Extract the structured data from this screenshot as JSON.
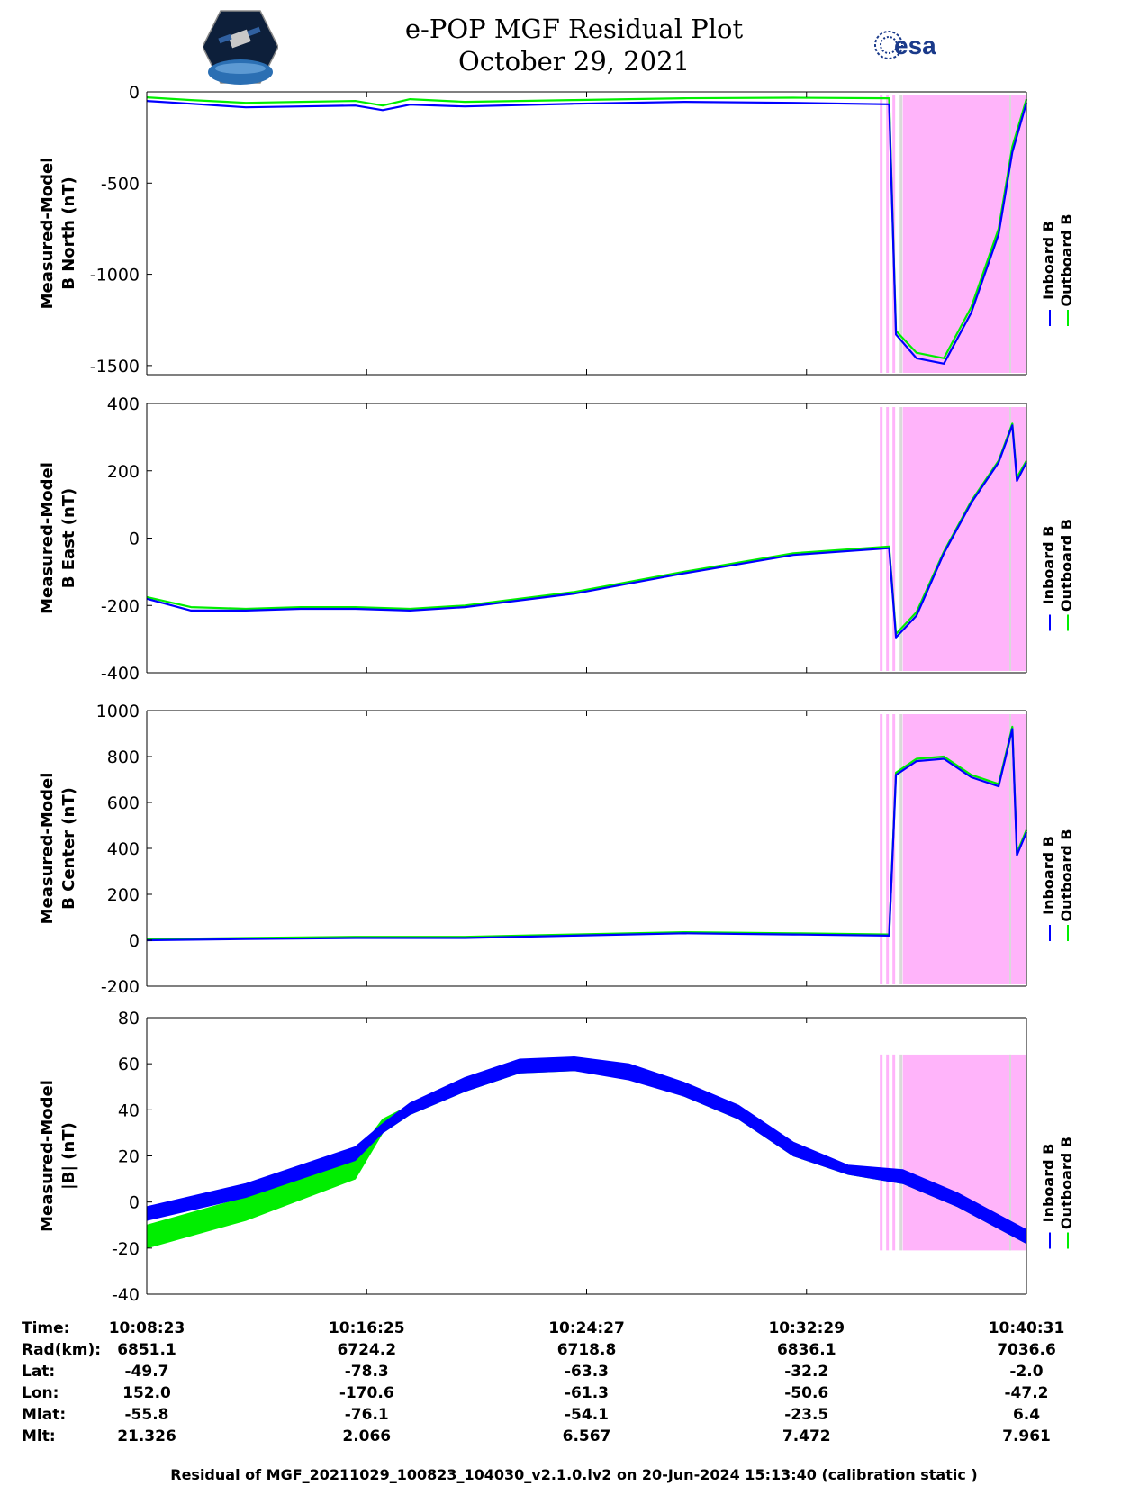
{
  "header": {
    "title_line1": "e-POP MGF Residual Plot",
    "title_line2": "October 29, 2021",
    "logo_left": "cassiope-mission-logo",
    "logo_right_text": "esa"
  },
  "colors": {
    "inboard": "#0000ff",
    "outboard": "#00ee00",
    "flag_region": "#ffb4fa",
    "flag_stripe": "#d9d9d9"
  },
  "chart_data": [
    {
      "type": "line",
      "ylabel": "Measured-Model\nB North (nT)",
      "ylim": [
        -1550,
        0
      ],
      "yticks": [
        0,
        -500,
        -1000,
        -1500
      ],
      "xlim": [
        "10:08:23",
        "10:40:31"
      ],
      "legend": [
        "Inboard B",
        "Outboard B"
      ],
      "legend_placement": "right",
      "flag_region": [
        "10:36:00",
        "10:40:31"
      ],
      "series": [
        {
          "name": "Outboard B",
          "x": [
            "10:08:23",
            "10:10:00",
            "10:12:00",
            "10:14:00",
            "10:16:00",
            "10:17:00",
            "10:18:00",
            "10:20:00",
            "10:24:00",
            "10:28:00",
            "10:32:00",
            "10:35:30",
            "10:35:45",
            "10:36:30",
            "10:37:30",
            "10:38:30",
            "10:39:30",
            "10:40:00",
            "10:40:31"
          ],
          "values": [
            -30,
            -45,
            -60,
            -55,
            -50,
            -75,
            -40,
            -55,
            -45,
            -35,
            -32,
            -35,
            -1310,
            -1430,
            -1460,
            -1180,
            -750,
            -300,
            -40
          ]
        },
        {
          "name": "Inboard B",
          "x": [
            "10:08:23",
            "10:10:00",
            "10:12:00",
            "10:14:00",
            "10:16:00",
            "10:17:00",
            "10:18:00",
            "10:20:00",
            "10:24:00",
            "10:28:00",
            "10:32:00",
            "10:35:30",
            "10:35:45",
            "10:36:30",
            "10:37:30",
            "10:38:30",
            "10:39:30",
            "10:40:00",
            "10:40:31"
          ],
          "values": [
            -50,
            -65,
            -85,
            -80,
            -75,
            -100,
            -70,
            -80,
            -65,
            -55,
            -60,
            -68,
            -1330,
            -1460,
            -1490,
            -1210,
            -780,
            -330,
            -60
          ]
        }
      ]
    },
    {
      "type": "line",
      "ylabel": "Measured-Model\nB East (nT)",
      "ylim": [
        -400,
        400
      ],
      "yticks": [
        400,
        200,
        0,
        -200,
        -400
      ],
      "xlim": [
        "10:08:23",
        "10:40:31"
      ],
      "legend": [
        "Inboard B",
        "Outboard B"
      ],
      "legend_placement": "right",
      "flag_region": [
        "10:36:00",
        "10:40:31"
      ],
      "series": [
        {
          "name": "Outboard B",
          "x": [
            "10:08:23",
            "10:10:00",
            "10:12:00",
            "10:14:00",
            "10:16:00",
            "10:18:00",
            "10:20:00",
            "10:24:00",
            "10:28:00",
            "10:32:00",
            "10:35:30",
            "10:35:45",
            "10:36:30",
            "10:37:30",
            "10:38:30",
            "10:39:30",
            "10:40:00",
            "10:40:10",
            "10:40:31"
          ],
          "values": [
            -175,
            -205,
            -210,
            -205,
            -205,
            -210,
            -200,
            -160,
            -100,
            -45,
            -25,
            -285,
            -220,
            -40,
            110,
            230,
            340,
            180,
            230
          ]
        },
        {
          "name": "Inboard B",
          "x": [
            "10:08:23",
            "10:10:00",
            "10:12:00",
            "10:14:00",
            "10:16:00",
            "10:18:00",
            "10:20:00",
            "10:24:00",
            "10:28:00",
            "10:32:00",
            "10:35:30",
            "10:35:45",
            "10:36:30",
            "10:37:30",
            "10:38:30",
            "10:39:30",
            "10:40:00",
            "10:40:10",
            "10:40:31"
          ],
          "values": [
            -180,
            -215,
            -215,
            -210,
            -210,
            -215,
            -205,
            -165,
            -105,
            -50,
            -30,
            -295,
            -230,
            -45,
            105,
            225,
            335,
            170,
            225
          ]
        }
      ]
    },
    {
      "type": "line",
      "ylabel": "Measured-Model\nB Center (nT)",
      "ylim": [
        -200,
        1000
      ],
      "yticks": [
        1000,
        800,
        600,
        400,
        200,
        0,
        -200
      ],
      "xlim": [
        "10:08:23",
        "10:40:31"
      ],
      "legend": [
        "Inboard B",
        "Outboard B"
      ],
      "legend_placement": "right",
      "flag_region": [
        "10:36:00",
        "10:40:31"
      ],
      "series": [
        {
          "name": "Outboard B",
          "x": [
            "10:08:23",
            "10:12:00",
            "10:16:00",
            "10:20:00",
            "10:24:00",
            "10:28:00",
            "10:32:00",
            "10:35:30",
            "10:35:45",
            "10:36:30",
            "10:37:30",
            "10:38:30",
            "10:39:30",
            "10:40:00",
            "10:40:10",
            "10:40:31"
          ],
          "values": [
            5,
            10,
            15,
            15,
            25,
            35,
            30,
            25,
            730,
            790,
            800,
            720,
            680,
            930,
            380,
            480
          ]
        },
        {
          "name": "Inboard B",
          "x": [
            "10:08:23",
            "10:12:00",
            "10:16:00",
            "10:20:00",
            "10:24:00",
            "10:28:00",
            "10:32:00",
            "10:35:30",
            "10:35:45",
            "10:36:30",
            "10:37:30",
            "10:38:30",
            "10:39:30",
            "10:40:00",
            "10:40:10",
            "10:40:31"
          ],
          "values": [
            0,
            5,
            10,
            10,
            20,
            30,
            25,
            20,
            720,
            780,
            790,
            710,
            670,
            920,
            370,
            470
          ]
        }
      ]
    },
    {
      "type": "area",
      "ylabel": "Measured-Model\n|B| (nT)",
      "ylim": [
        -40,
        80
      ],
      "yticks": [
        80,
        60,
        40,
        20,
        0,
        -20,
        -40
      ],
      "xlim": [
        "10:08:23",
        "10:40:31"
      ],
      "legend": [
        "Inboard B",
        "Outboard B"
      ],
      "legend_placement": "right",
      "flag_region": [
        "10:36:00",
        "10:40:31"
      ],
      "series": [
        {
          "name": "Outboard B",
          "x": [
            "10:08:23",
            "10:12:00",
            "10:16:00",
            "10:17:00",
            "10:18:00",
            "10:20:00",
            "10:22:00",
            "10:24:00",
            "10:26:00",
            "10:28:00",
            "10:30:00",
            "10:32:00",
            "10:34:00",
            "10:36:00",
            "10:38:00",
            "10:40:31"
          ],
          "upper": [
            -10,
            2,
            20,
            36,
            42,
            52,
            60,
            61,
            58,
            50,
            40,
            24,
            15,
            12,
            2,
            -14
          ],
          "lower": [
            -20,
            -8,
            10,
            30,
            38,
            48,
            56,
            57,
            54,
            46,
            36,
            20,
            12,
            8,
            -2,
            -18
          ]
        },
        {
          "name": "Inboard B",
          "x": [
            "10:08:23",
            "10:12:00",
            "10:16:00",
            "10:17:00",
            "10:18:00",
            "10:20:00",
            "10:22:00",
            "10:24:00",
            "10:26:00",
            "10:28:00",
            "10:30:00",
            "10:32:00",
            "10:34:00",
            "10:36:00",
            "10:38:00",
            "10:40:31"
          ],
          "upper": [
            -2,
            8,
            24,
            34,
            43,
            54,
            62,
            63,
            60,
            52,
            42,
            26,
            16,
            14,
            4,
            -12
          ],
          "lower": [
            -8,
            2,
            18,
            30,
            38,
            48,
            56,
            57,
            53,
            46,
            36,
            20,
            12,
            8,
            -2,
            -18
          ]
        }
      ]
    }
  ],
  "footer": {
    "labels": [
      "Time:",
      "Rad(km):",
      "Lat:",
      "Lon:",
      "Mlat:",
      "Mlt:"
    ],
    "columns": [
      [
        "10:08:23",
        "6851.1",
        "-49.7",
        "152.0",
        "-55.8",
        "21.326"
      ],
      [
        "10:16:25",
        "6724.2",
        "-78.3",
        "-170.6",
        "-76.1",
        "2.066"
      ],
      [
        "10:24:27",
        "6718.8",
        "-63.3",
        "-61.3",
        "-54.1",
        "6.567"
      ],
      [
        "10:32:29",
        "6836.1",
        "-32.2",
        "-50.6",
        "-23.5",
        "7.472"
      ],
      [
        "10:40:31",
        "7036.6",
        "-2.0",
        "-47.2",
        "6.4",
        "7.961"
      ]
    ],
    "note": "Residual of MGF_20211029_100823_104030_v2.1.0.lv2 on 20-Jun-2024 15:13:40 (calibration static )"
  }
}
